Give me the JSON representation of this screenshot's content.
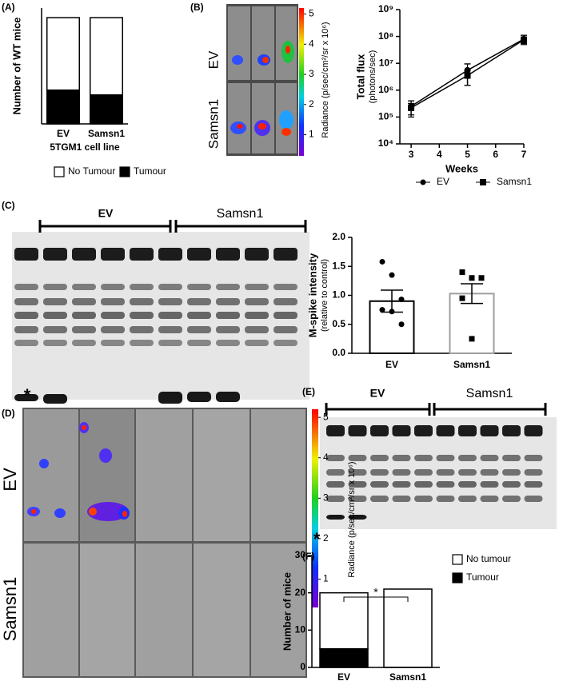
{
  "chart_data": [
    {
      "type": "stacked_bar",
      "ylabel": "Number of WT mice",
      "xlabel": "5TGM1 cell line",
      "categories": [
        "EV",
        "Samsn1"
      ],
      "series": [
        {
          "name": "Tumour",
          "color": "#000000",
          "values": [
            7,
            6
          ]
        },
        {
          "name": "No Tumour",
          "color": "#ffffff",
          "values": [
            15,
            16
          ]
        }
      ],
      "ylim": [
        0,
        24
      ],
      "legend": "bottom"
    },
    {
      "type": "line",
      "ylabel": "Total flux",
      "ylabel_sub": "(photons/sec)",
      "xlabel": "Weeks",
      "x": [
        3,
        5,
        7
      ],
      "series": [
        {
          "name": "EV",
          "color": "#000000",
          "marker": "circle",
          "values": [
            250000,
            5500000,
            80000000
          ],
          "errors": [
            150000,
            4000000,
            30000000
          ]
        },
        {
          "name": "Samsn1",
          "color": "#000000",
          "marker": "square",
          "values": [
            220000,
            3500000,
            75000000
          ],
          "errors": [
            100000,
            2000000,
            20000000
          ]
        }
      ],
      "xlim": [
        2.6,
        7
      ],
      "xticks": [
        3,
        4,
        5,
        6,
        7
      ],
      "log_y": true,
      "ylim": [
        10000,
        1000000000
      ],
      "yticks": [
        {
          "value": 10000,
          "label": "10⁴"
        },
        {
          "value": 100000,
          "label": "10⁵"
        },
        {
          "value": 1000000,
          "label": "10⁶"
        },
        {
          "value": 10000000,
          "label": "10⁷"
        },
        {
          "value": 100000000,
          "label": "10⁸"
        },
        {
          "value": 1000000000,
          "label": "10⁹"
        }
      ],
      "legend": "bottom"
    },
    {
      "type": "bar",
      "ylabel": "M-spike intensity",
      "ylabel_sub": "(relative to control)",
      "categories": [
        "EV",
        "Samsn1"
      ],
      "values": [
        0.9,
        1.03
      ],
      "errors": [
        0.19,
        0.17
      ],
      "colors": [
        "#000000",
        "#9e9e9e"
      ],
      "points": [
        [
          1.58,
          1.35,
          0.93,
          0.75,
          0.72,
          0.5
        ],
        [
          1.4,
          1.3,
          1.3,
          0.95,
          0.25
        ]
      ],
      "ylim": [
        0,
        2
      ],
      "yticks": [
        {
          "value": 0,
          "label": "0.0"
        },
        0.5,
        {
          "value": 1,
          "label": "1.0"
        },
        1.5,
        {
          "value": 2,
          "label": "2.0"
        }
      ]
    },
    {
      "type": "stacked_bar",
      "ylabel": "Number of mice",
      "categories": [
        "EV",
        "Samsn1"
      ],
      "series": [
        {
          "name": "Tumour",
          "color": "#000000",
          "values": [
            5,
            0
          ]
        },
        {
          "name": "No tumour",
          "color": "#ffffff",
          "values": [
            15,
            21
          ]
        }
      ],
      "ylim": [
        0,
        30
      ],
      "yticks": [
        0,
        10,
        20,
        30
      ],
      "legend": "right",
      "annotation": "*"
    }
  ],
  "figure": {
    "panel_labels": [
      "(A)",
      "(B)",
      "(C)",
      "(D)",
      "(E)",
      "(F)"
    ],
    "b_image": {
      "labels": [
        "EV",
        "Samsn1"
      ],
      "colorbar": {
        "lim": [
          0.3,
          5.2
        ],
        "ticks": [
          1,
          2,
          3,
          4,
          5
        ],
        "label": "Radiance (p/sec/cm²/sr x 10⁶)"
      }
    },
    "c_gel": {
      "labels": [
        "EV",
        "Samsn1"
      ],
      "marker": "*"
    },
    "d_image": {
      "labels": [
        "EV",
        "Samsn1"
      ],
      "colorbar": {
        "lim": [
          0.3,
          5.2
        ],
        "ticks": [
          1,
          2,
          3,
          4,
          5
        ],
        "label": "Radiance (p/sec/cm²/sr x 10⁶)"
      }
    },
    "e_gel": {
      "labels": [
        "EV",
        "Samsn1"
      ],
      "marker": "*"
    }
  }
}
